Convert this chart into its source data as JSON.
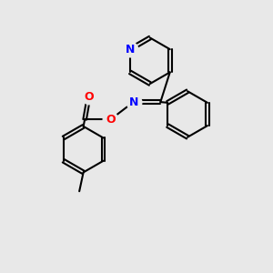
{
  "bg_color": "#e8e8e8",
  "bond_color": "#000000",
  "bond_width": 1.5,
  "atom_colors": {
    "N": "#0000ff",
    "O": "#ff0000"
  },
  "font_size_atoms": 9
}
